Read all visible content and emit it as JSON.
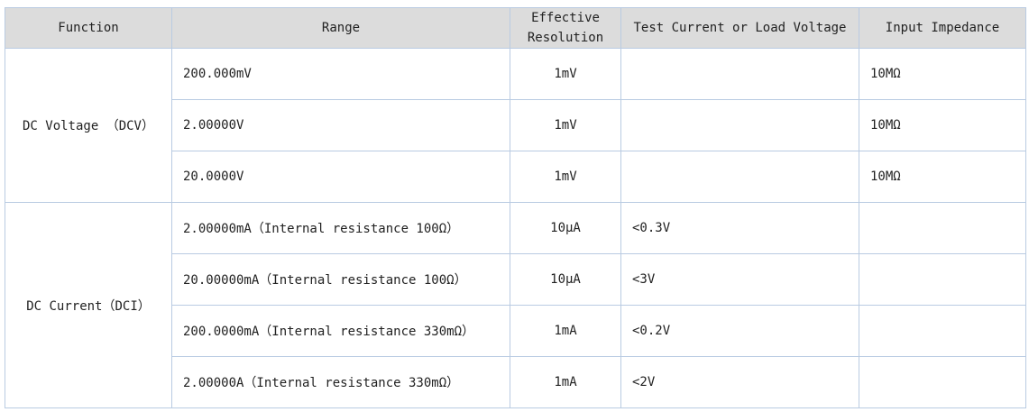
{
  "table": {
    "header": [
      "Function",
      "Range",
      "Effective Resolution",
      "Test Current or Load Voltage",
      "Input Impedance"
    ],
    "groups": [
      {
        "function": "DC Voltage （DCV）",
        "rows": [
          {
            "range": "200.000mV",
            "resolution": "1mV",
            "input_impedance": "10MΩ"
          },
          {
            "range": "2.00000V",
            "resolution": "1mV",
            "input_impedance": "10MΩ"
          },
          {
            "range": "20.0000V",
            "resolution": "1mV",
            "input_impedance": "10MΩ"
          }
        ]
      },
      {
        "function": "DC Current（DCI）",
        "rows": [
          {
            "range": "2.00000mA（Internal resistance 100Ω）",
            "resolution": "10μA",
            "test_current": "<0.3V"
          },
          {
            "range": "20.00000mA（Internal resistance 100Ω）",
            "resolution": "10μA",
            "test_current": "<3V"
          },
          {
            "range": "200.0000mA（Internal resistance 330mΩ）",
            "resolution": "1mA",
            "test_current": "<0.2V"
          },
          {
            "range": "2.00000A（Internal resistance 330mΩ）",
            "resolution": "1mA",
            "test_current": "<2V"
          }
        ]
      }
    ]
  }
}
